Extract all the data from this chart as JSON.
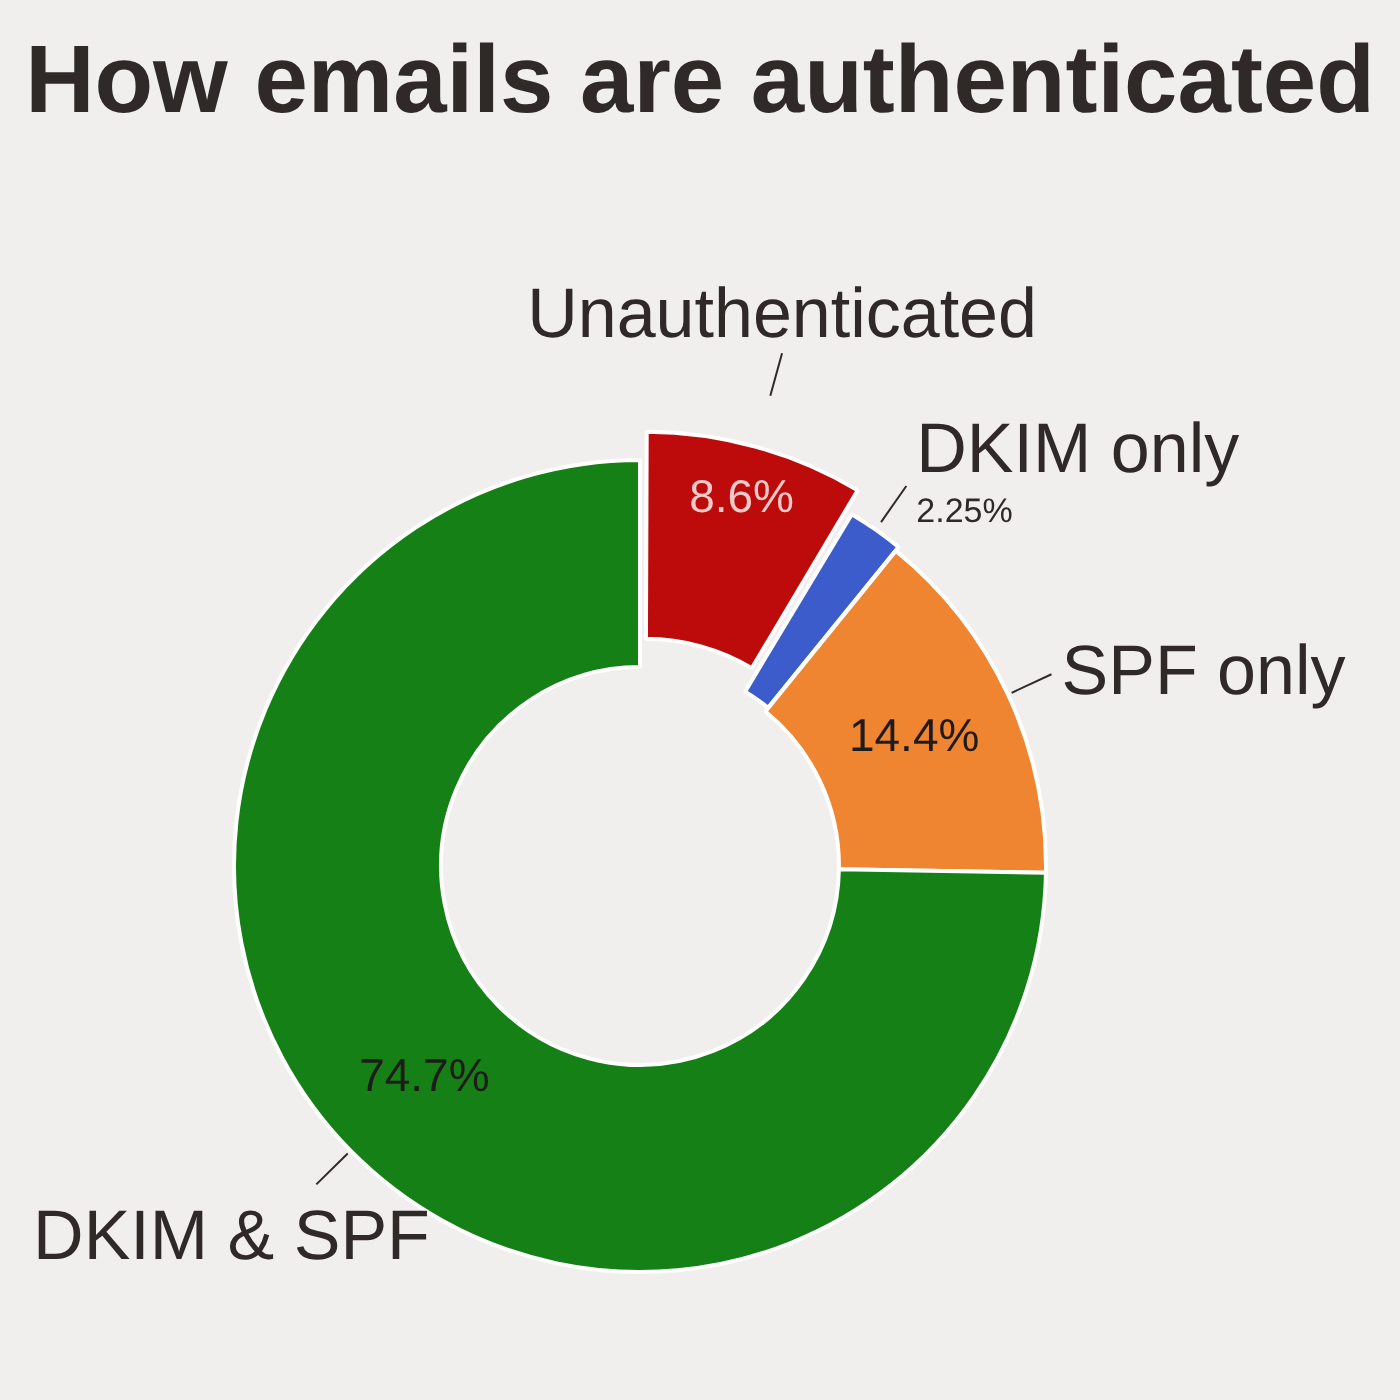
{
  "chart_data": {
    "type": "donut",
    "title": "How emails are authenticated",
    "categories": [
      "Unauthenticated",
      "DKIM only",
      "SPF only",
      "DKIM & SPF"
    ],
    "values": [
      8.6,
      2.25,
      14.4,
      74.7
    ],
    "colors": [
      "#bd0a0a",
      "#3d5ccc",
      "#ef8530",
      "#158015"
    ],
    "value_labels": [
      "8.6%",
      "2.25%",
      "14.4%",
      "74.7%"
    ]
  }
}
